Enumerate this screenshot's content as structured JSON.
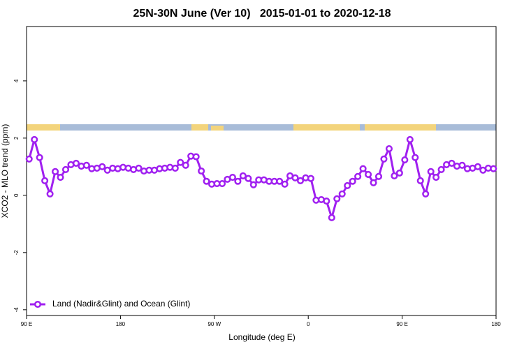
{
  "chart_data": {
    "type": "line",
    "title": "25N-30N June (Ver 10)   2015-01-01 to 2020-12-18",
    "x_label": "Longitude (deg E)",
    "y_label": "XCO2 - MLO trend (ppm)",
    "x": [
      92.5,
      97.5,
      102.5,
      107.5,
      112.5,
      117.5,
      122.5,
      127.5,
      132.5,
      137.5,
      142.5,
      147.5,
      152.5,
      157.5,
      162.5,
      167.5,
      172.5,
      177.5,
      182.5,
      187.5,
      192.5,
      197.5,
      202.5,
      207.5,
      212.5,
      217.5,
      222.5,
      227.5,
      232.5,
      237.5,
      242.5,
      247.5,
      252.5,
      257.5,
      262.5,
      267.5,
      272.5,
      277.5,
      282.5,
      287.5,
      292.5,
      297.5,
      302.5,
      307.5,
      312.5,
      317.5,
      322.5,
      327.5,
      332.5,
      337.5,
      342.5,
      347.5,
      352.5,
      357.5,
      362.5,
      367.5,
      372.5,
      377.5,
      382.5,
      387.5,
      392.5,
      397.5,
      402.5,
      407.5,
      412.5,
      417.5,
      422.5,
      427.5,
      432.5,
      437.5,
      442.5,
      447.5,
      452.5,
      457.5,
      462.5,
      467.5,
      472.5,
      477.5,
      482.5,
      487.5,
      492.5,
      497.5,
      502.5,
      507.5,
      512.5,
      517.5,
      522.5,
      527.5,
      532.5,
      537.5
    ],
    "series": [
      {
        "name": "Land (Nadir&Glint) and Ocean (Glint)",
        "color": "#a020f0",
        "values": [
          1.27,
          1.95,
          1.32,
          0.51,
          0.05,
          0.83,
          0.63,
          0.9,
          1.07,
          1.12,
          1.02,
          1.05,
          0.93,
          0.95,
          1.0,
          0.88,
          0.95,
          0.93,
          0.98,
          0.95,
          0.9,
          0.95,
          0.85,
          0.88,
          0.88,
          0.93,
          0.95,
          0.98,
          0.95,
          1.15,
          1.05,
          1.37,
          1.35,
          0.85,
          0.49,
          0.39,
          0.41,
          0.41,
          0.56,
          0.63,
          0.49,
          0.68,
          0.59,
          0.37,
          0.54,
          0.54,
          0.49,
          0.49,
          0.49,
          0.39,
          0.68,
          0.61,
          0.51,
          0.61,
          0.59,
          -0.17,
          -0.15,
          -0.2,
          -0.78,
          -0.12,
          0.05,
          0.34,
          0.49,
          0.66,
          0.93,
          0.73,
          0.44,
          0.66,
          1.27,
          1.63,
          0.68,
          0.78,
          1.24,
          1.95,
          1.32,
          0.51,
          0.05,
          0.83,
          0.63,
          0.9,
          1.07,
          1.12,
          1.02,
          1.05,
          0.93,
          0.95,
          1.0,
          0.88,
          0.95,
          0.93
        ]
      }
    ],
    "xlim": [
      90,
      540
    ],
    "xticks": [
      {
        "value": 90,
        "label": "90 E"
      },
      180,
      {
        "value": 270,
        "label": "90 W"
      },
      {
        "value": 360,
        "label": "0"
      },
      {
        "value": 450,
        "label": "90 E"
      },
      {
        "value": 540,
        "label": "180"
      }
    ],
    "ylim": [
      -4.2,
      5.9
    ],
    "yticks": [
      -4,
      -2,
      0,
      2,
      4
    ],
    "legend": "lower left"
  }
}
